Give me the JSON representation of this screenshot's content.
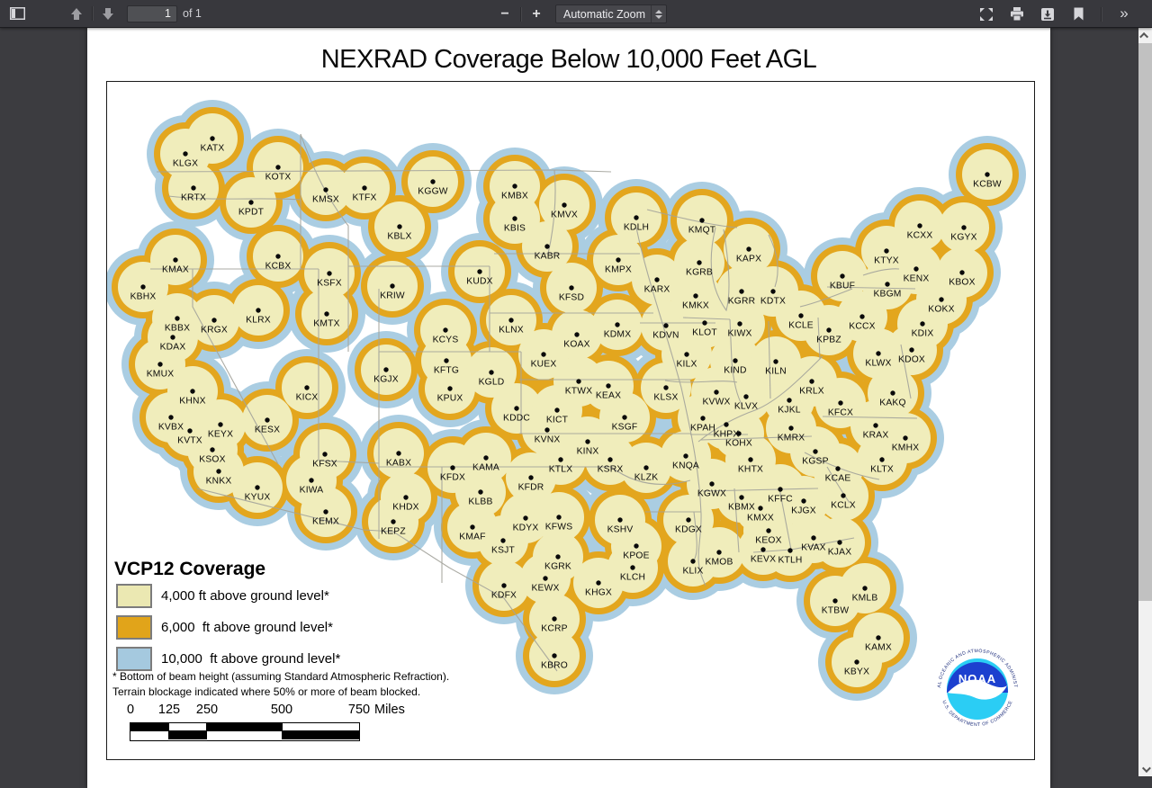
{
  "toolbar": {
    "page_input": "1",
    "page_count_label": "of 1",
    "zoom_select_value": "Automatic Zoom",
    "zoom_out_label": "−",
    "zoom_in_label": "+",
    "more_tools_label": "»"
  },
  "doc": {
    "title": "NEXRAD Coverage Below 10,000 Feet AGL"
  },
  "legend": {
    "title": "VCP12 Coverage",
    "items": [
      {
        "label": "4,000 ft above ground level*",
        "color": "#ebe8b2"
      },
      {
        "label": "6,000  ft above ground level*",
        "color": "#e1a41a"
      },
      {
        "label": "10,000  ft above ground level*",
        "color": "#a5c9df"
      }
    ],
    "footnote1": "* Bottom of beam height (assuming Standard Atmospheric Refraction).",
    "footnote2": "Terrain blockage indicated where 50% or more of beam blocked."
  },
  "scalebar": {
    "ticks": [
      "0",
      "125",
      "250",
      "500",
      "750"
    ],
    "unit": "Miles"
  },
  "noaa": {
    "name": "NOAA",
    "ring_top": "NATIONAL OCEANIC AND ATMOSPHERIC ADMINISTRATION",
    "ring_bottom": "U.S. DEPARTMENT OF COMMERCE"
  },
  "map": {
    "colors": {
      "l4000": "#f0edbb",
      "l6000": "#e3a61e",
      "l10000": "#aacde2",
      "boundary": "#a3a39b",
      "dot": "#0a0a0a"
    },
    "stations": [
      [
        "KATX",
        117,
        63
      ],
      [
        "KLGX",
        87,
        80
      ],
      [
        "KOTX",
        190,
        95
      ],
      [
        "KRTX",
        96,
        118
      ],
      [
        "KPDT",
        160,
        134
      ],
      [
        "KMSX",
        243,
        120
      ],
      [
        "KTFX",
        286,
        118
      ],
      [
        "KGGW",
        362,
        111
      ],
      [
        "KMBX",
        453,
        116
      ],
      [
        "KMVX",
        508,
        137
      ],
      [
        "KBIS",
        453,
        152
      ],
      [
        "KDLH",
        588,
        151
      ],
      [
        "KMQT",
        661,
        154
      ],
      [
        "KCBW",
        978,
        103
      ],
      [
        "KBLX",
        325,
        161
      ],
      [
        "KABR",
        489,
        183
      ],
      [
        "KMPX",
        568,
        198
      ],
      [
        "KGRB",
        658,
        201
      ],
      [
        "KAPX",
        713,
        186
      ],
      [
        "KCXX",
        903,
        160
      ],
      [
        "KGYX",
        952,
        162
      ],
      [
        "KMAX",
        76,
        198
      ],
      [
        "KCBX",
        190,
        194
      ],
      [
        "KSFX",
        247,
        213
      ],
      [
        "KRIW",
        317,
        227
      ],
      [
        "KUDX",
        414,
        211
      ],
      [
        "KFSD",
        516,
        229
      ],
      [
        "KARX",
        611,
        220
      ],
      [
        "KMKX",
        654,
        238
      ],
      [
        "KGRR",
        705,
        233
      ],
      [
        "KDTX",
        740,
        233
      ],
      [
        "KTYX",
        866,
        188
      ],
      [
        "KENX",
        899,
        208
      ],
      [
        "KBOX",
        950,
        212
      ],
      [
        "KBUF",
        817,
        216
      ],
      [
        "KBGM",
        867,
        225
      ],
      [
        "KOKX",
        927,
        242
      ],
      [
        "KBHX",
        40,
        228
      ],
      [
        "KBBX",
        78,
        263
      ],
      [
        "KRGX",
        119,
        265
      ],
      [
        "KLRX",
        168,
        254
      ],
      [
        "KMTX",
        244,
        258
      ],
      [
        "KDAX",
        73,
        284
      ],
      [
        "KMUX",
        59,
        314
      ],
      [
        "KHNX",
        95,
        344
      ],
      [
        "KCYS",
        376,
        276
      ],
      [
        "KLNX",
        449,
        265
      ],
      [
        "KDMX",
        567,
        270
      ],
      [
        "KDVN",
        621,
        271
      ],
      [
        "KLOT",
        664,
        268
      ],
      [
        "KIWX",
        703,
        269
      ],
      [
        "KCLE",
        771,
        260
      ],
      [
        "KCCX",
        839,
        261
      ],
      [
        "KDIX",
        906,
        269
      ],
      [
        "KPBZ",
        802,
        276
      ],
      [
        "KDOX",
        894,
        298
      ],
      [
        "KLWX",
        857,
        302
      ],
      [
        "KFTG",
        377,
        310
      ],
      [
        "KGLD",
        427,
        323
      ],
      [
        "KOAX",
        522,
        281
      ],
      [
        "KUEX",
        485,
        303
      ],
      [
        "KILX",
        644,
        303
      ],
      [
        "KIND",
        698,
        310
      ],
      [
        "KILN",
        743,
        311
      ],
      [
        "KGJX",
        310,
        320
      ],
      [
        "KPUX",
        381,
        341
      ],
      [
        "KICX",
        222,
        340
      ],
      [
        "KESX",
        178,
        376
      ],
      [
        "KEYX",
        126,
        381
      ],
      [
        "KVBX",
        71,
        373
      ],
      [
        "KVTX",
        92,
        388
      ],
      [
        "KSOX",
        117,
        409
      ],
      [
        "KNKX",
        124,
        433
      ],
      [
        "KYUX",
        167,
        451
      ],
      [
        "KIWA",
        227,
        443
      ],
      [
        "KFSX",
        242,
        414
      ],
      [
        "KEMX",
        243,
        478
      ],
      [
        "KABX",
        324,
        413
      ],
      [
        "KHDX",
        332,
        462
      ],
      [
        "KEPZ",
        318,
        489
      ],
      [
        "KTWX",
        524,
        333
      ],
      [
        "KEAX",
        557,
        338
      ],
      [
        "KLSX",
        621,
        340
      ],
      [
        "KVWX",
        677,
        345
      ],
      [
        "KLVX",
        710,
        350
      ],
      [
        "KJKL",
        758,
        354
      ],
      [
        "KRLX",
        783,
        333
      ],
      [
        "KFCX",
        815,
        357
      ],
      [
        "KAKQ",
        873,
        346
      ],
      [
        "KRAX",
        854,
        382
      ],
      [
        "KMHX",
        887,
        396
      ],
      [
        "KDDC",
        455,
        363
      ],
      [
        "KICT",
        500,
        365
      ],
      [
        "KSGF",
        575,
        373
      ],
      [
        "KPAH",
        662,
        374
      ],
      [
        "KHPX",
        688,
        381
      ],
      [
        "KOHX",
        702,
        391
      ],
      [
        "KMRX",
        760,
        385
      ],
      [
        "KVNX",
        489,
        387
      ],
      [
        "KINX",
        534,
        400
      ],
      [
        "KNQA",
        643,
        416
      ],
      [
        "KAMA",
        421,
        418
      ],
      [
        "KFDX",
        384,
        429
      ],
      [
        "KTLX",
        504,
        420
      ],
      [
        "KSRX",
        559,
        420
      ],
      [
        "KLZK",
        599,
        429
      ],
      [
        "KFDR",
        471,
        440
      ],
      [
        "KGWX",
        672,
        447
      ],
      [
        "KLBB",
        415,
        456
      ],
      [
        "KHTX",
        715,
        420
      ],
      [
        "KGSP",
        787,
        411
      ],
      [
        "KCAE",
        812,
        430
      ],
      [
        "KLTX",
        861,
        420
      ],
      [
        "KFFC",
        748,
        453
      ],
      [
        "KCLX",
        818,
        460
      ],
      [
        "KBMX",
        705,
        462
      ],
      [
        "KJGX",
        774,
        466
      ],
      [
        "KMXX",
        726,
        474
      ],
      [
        "KDYX",
        465,
        485
      ],
      [
        "KFWS",
        502,
        484
      ],
      [
        "KSHV",
        570,
        487
      ],
      [
        "KDGX",
        646,
        487
      ],
      [
        "KMAF",
        406,
        495
      ],
      [
        "KSJT",
        440,
        510
      ],
      [
        "KEOX",
        735,
        499
      ],
      [
        "KVAX",
        785,
        507
      ],
      [
        "KJAX",
        814,
        512
      ],
      [
        "KMOB",
        680,
        523
      ],
      [
        "KEVX",
        729,
        520
      ],
      [
        "KTLH",
        759,
        521
      ],
      [
        "KGRK",
        501,
        528
      ],
      [
        "KPOE",
        588,
        516
      ],
      [
        "KLCH",
        584,
        540
      ],
      [
        "KLIX",
        651,
        533
      ],
      [
        "KEWX",
        487,
        552
      ],
      [
        "KDFX",
        441,
        560
      ],
      [
        "KHGX",
        546,
        557
      ],
      [
        "KMLB",
        842,
        563
      ],
      [
        "KTBW",
        809,
        577
      ],
      [
        "KCRP",
        497,
        597
      ],
      [
        "KAMX",
        857,
        618
      ],
      [
        "KBRO",
        497,
        638
      ],
      [
        "KBYX",
        833,
        645
      ]
    ]
  }
}
